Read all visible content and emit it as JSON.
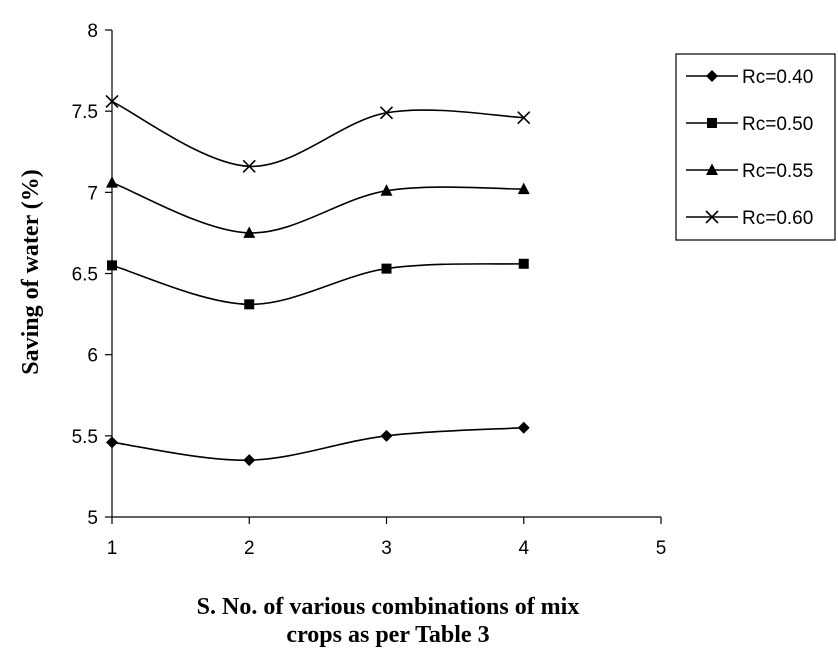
{
  "chart_data": {
    "type": "line",
    "title": "",
    "xlabel_lines": [
      "S. No. of various combinations of mix",
      "crops as per Table 3"
    ],
    "ylabel": "Saving of water (%)",
    "x": [
      1,
      2,
      3,
      4
    ],
    "xlim": [
      1,
      5
    ],
    "ylim": [
      5,
      8
    ],
    "xticks": [
      1,
      2,
      3,
      4,
      5
    ],
    "xtick_labels": [
      "1",
      "2",
      "3",
      "4",
      "5"
    ],
    "yticks": [
      5,
      5.5,
      6,
      6.5,
      7,
      7.5,
      8
    ],
    "ytick_labels": [
      "5",
      "5.5",
      "6",
      "6.5",
      "7",
      "7.5",
      "8"
    ],
    "grid": false,
    "smooth": true,
    "legend_position": "right",
    "series": [
      {
        "name": "Rc=0.40",
        "marker": "diamond",
        "values": [
          5.46,
          5.35,
          5.5,
          5.55
        ]
      },
      {
        "name": "Rc=0.50",
        "marker": "square",
        "values": [
          6.55,
          6.31,
          6.53,
          6.56
        ]
      },
      {
        "name": "Rc=0.55",
        "marker": "triangle",
        "values": [
          7.06,
          6.75,
          7.01,
          7.02
        ]
      },
      {
        "name": "Rc=0.60",
        "marker": "x",
        "values": [
          7.56,
          7.16,
          7.49,
          7.46
        ]
      }
    ]
  }
}
